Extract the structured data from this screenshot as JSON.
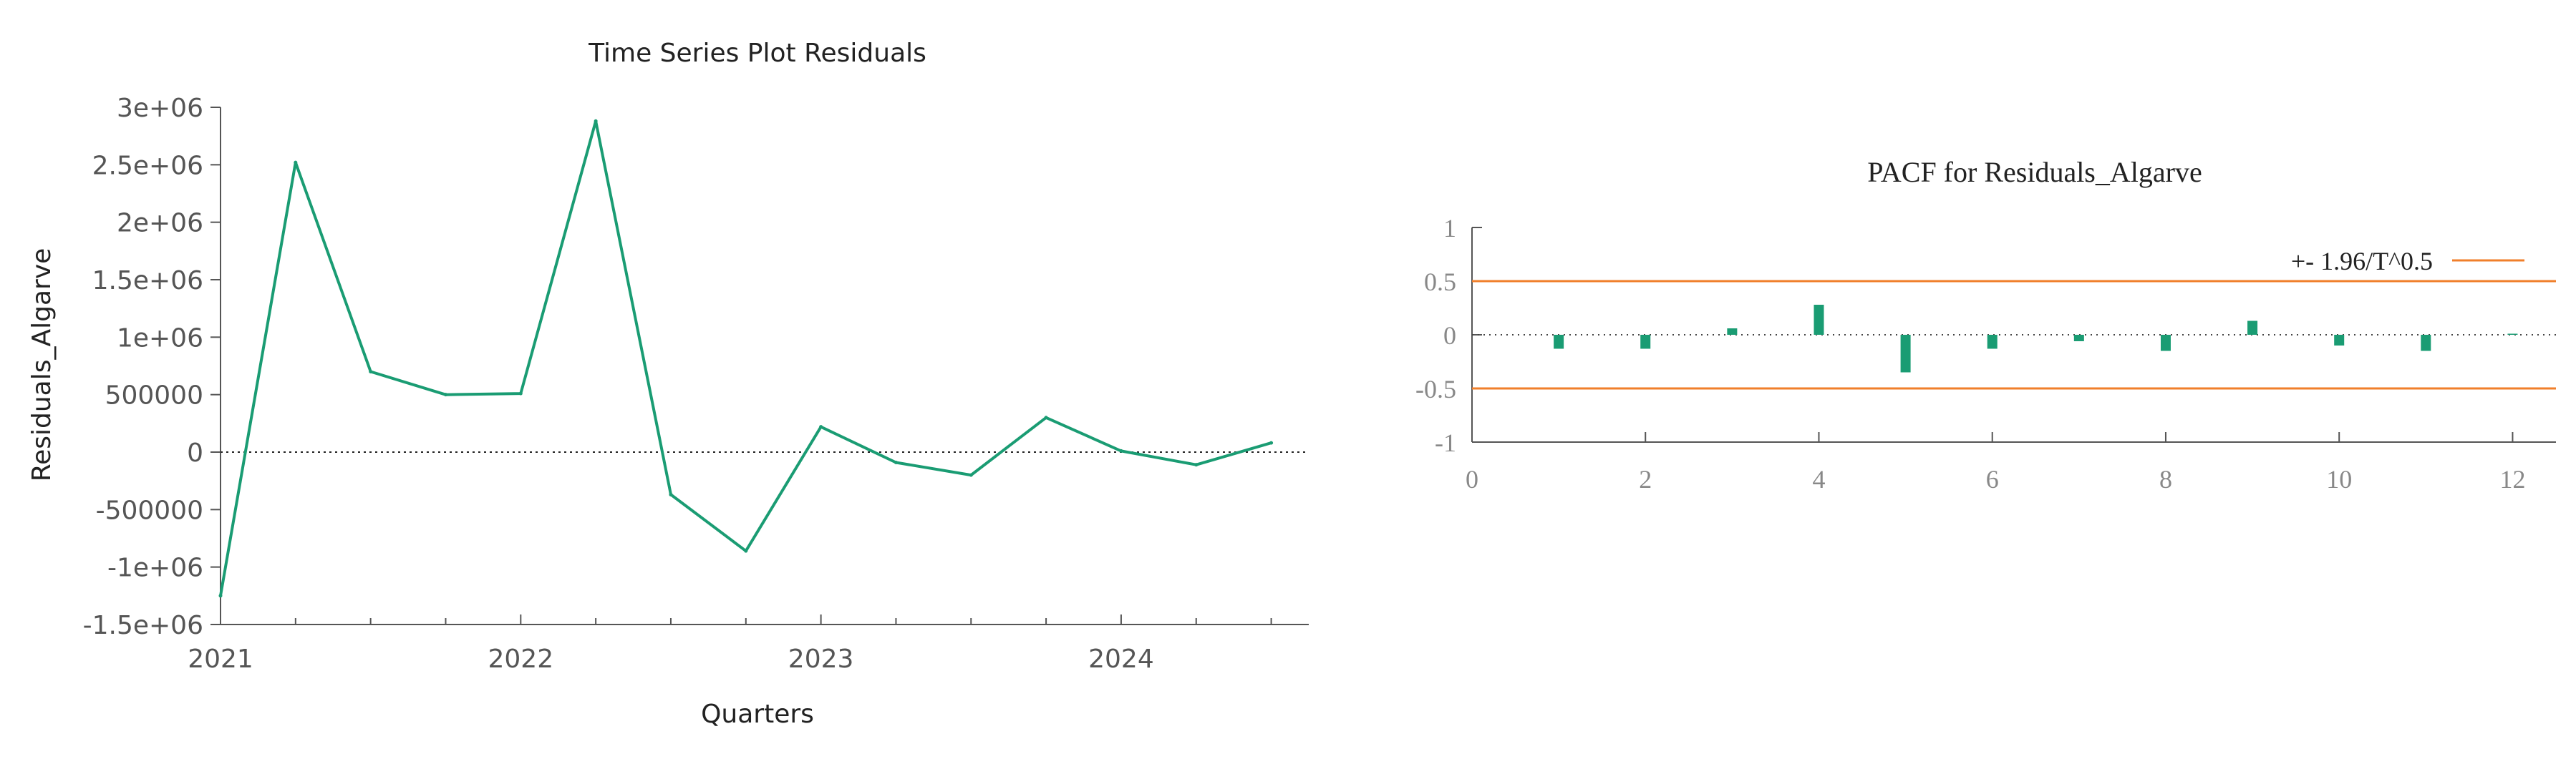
{
  "colors": {
    "series": "#1a9c73",
    "bounds": "#f07f2b",
    "axis": "#555555",
    "tick_text": "#555555",
    "serif_tick_text": "#888888"
  },
  "chart_data": [
    {
      "type": "line",
      "title": "Time Series Plot Residuals",
      "xlabel": "Quarters",
      "ylabel": "Residuals_Algarve",
      "x_tick_labels": [
        "2021",
        "2022",
        "2023",
        "2024"
      ],
      "y_tick_labels": [
        "3e+06",
        "2.5e+06",
        "2e+06",
        "1.5e+06",
        "1e+06",
        "500000",
        "0",
        "-500000",
        "-1e+06",
        "-1.5e+06"
      ],
      "xlim": [
        2021,
        2024.625
      ],
      "ylim": [
        -1500000,
        3000000
      ],
      "zero_line": true,
      "series": [
        {
          "x": [
            2021.0,
            2021.25,
            2021.5,
            2021.75,
            2022.0,
            2022.25,
            2022.5,
            2022.75,
            2023.0,
            2023.25,
            2023.5,
            2023.75,
            2024.0,
            2024.25,
            2024.5
          ],
          "values": [
            -1250000,
            2520000,
            700000,
            500000,
            510000,
            2880000,
            -370000,
            -860000,
            220000,
            -90000,
            -200000,
            300000,
            10000,
            -110000,
            80000
          ]
        }
      ]
    },
    {
      "type": "bar",
      "title": "PACF for Residuals_Algarve",
      "legend": {
        "label": "+- 1.96/T^0.5",
        "placement": "top-right"
      },
      "x_tick_labels": [
        "0",
        "2",
        "4",
        "6",
        "8",
        "10",
        "12"
      ],
      "y_tick_labels": [
        "1",
        "0.5",
        "0",
        "-0.5",
        "-1"
      ],
      "xlim": [
        0,
        12.5
      ],
      "ylim": [
        -1,
        1
      ],
      "bound": 0.5,
      "zero_line": true,
      "lags": [
        1,
        2,
        3,
        4,
        5,
        6,
        7,
        8,
        9,
        10,
        11,
        12
      ],
      "values": [
        -0.13,
        -0.13,
        0.06,
        0.28,
        -0.35,
        -0.13,
        -0.06,
        -0.15,
        0.13,
        -0.1,
        -0.15,
        0.01
      ]
    }
  ]
}
